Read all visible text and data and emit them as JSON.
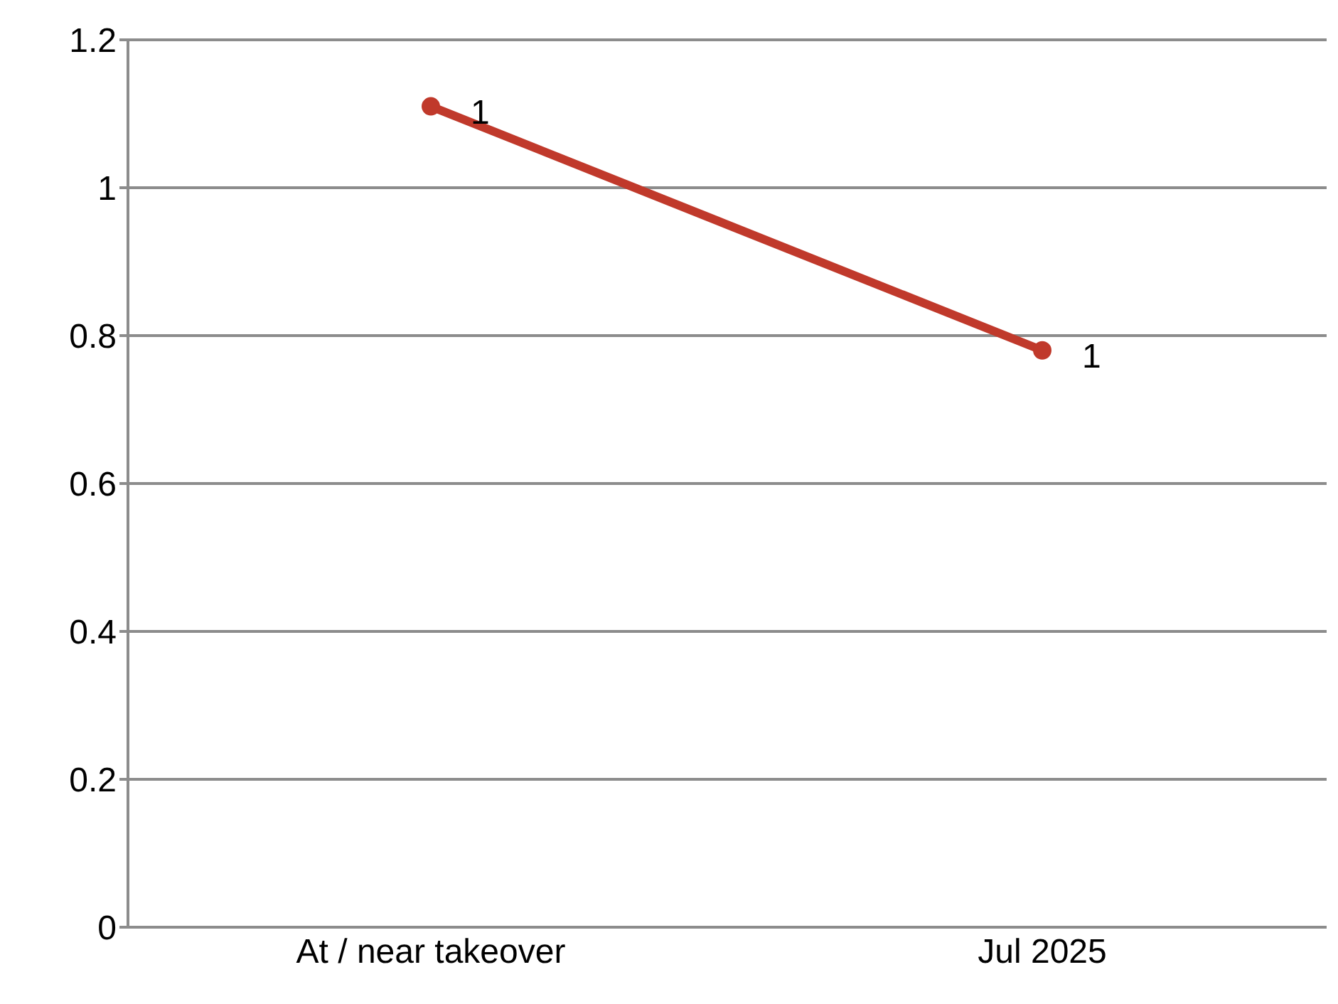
{
  "chart_data": {
    "type": "line",
    "categories": [
      "At / near takeover",
      "Jul 2025"
    ],
    "series": [
      {
        "color": "#c0392b",
        "values": [
          1.11,
          0.78
        ],
        "value_labels": [
          "1",
          "1"
        ]
      }
    ],
    "ylim": [
      0,
      1.2
    ],
    "yticks": [
      0,
      0.2,
      0.4,
      0.6,
      0.8,
      1,
      1.2
    ],
    "grid": true,
    "marker": "circle",
    "line_style": "solid"
  }
}
